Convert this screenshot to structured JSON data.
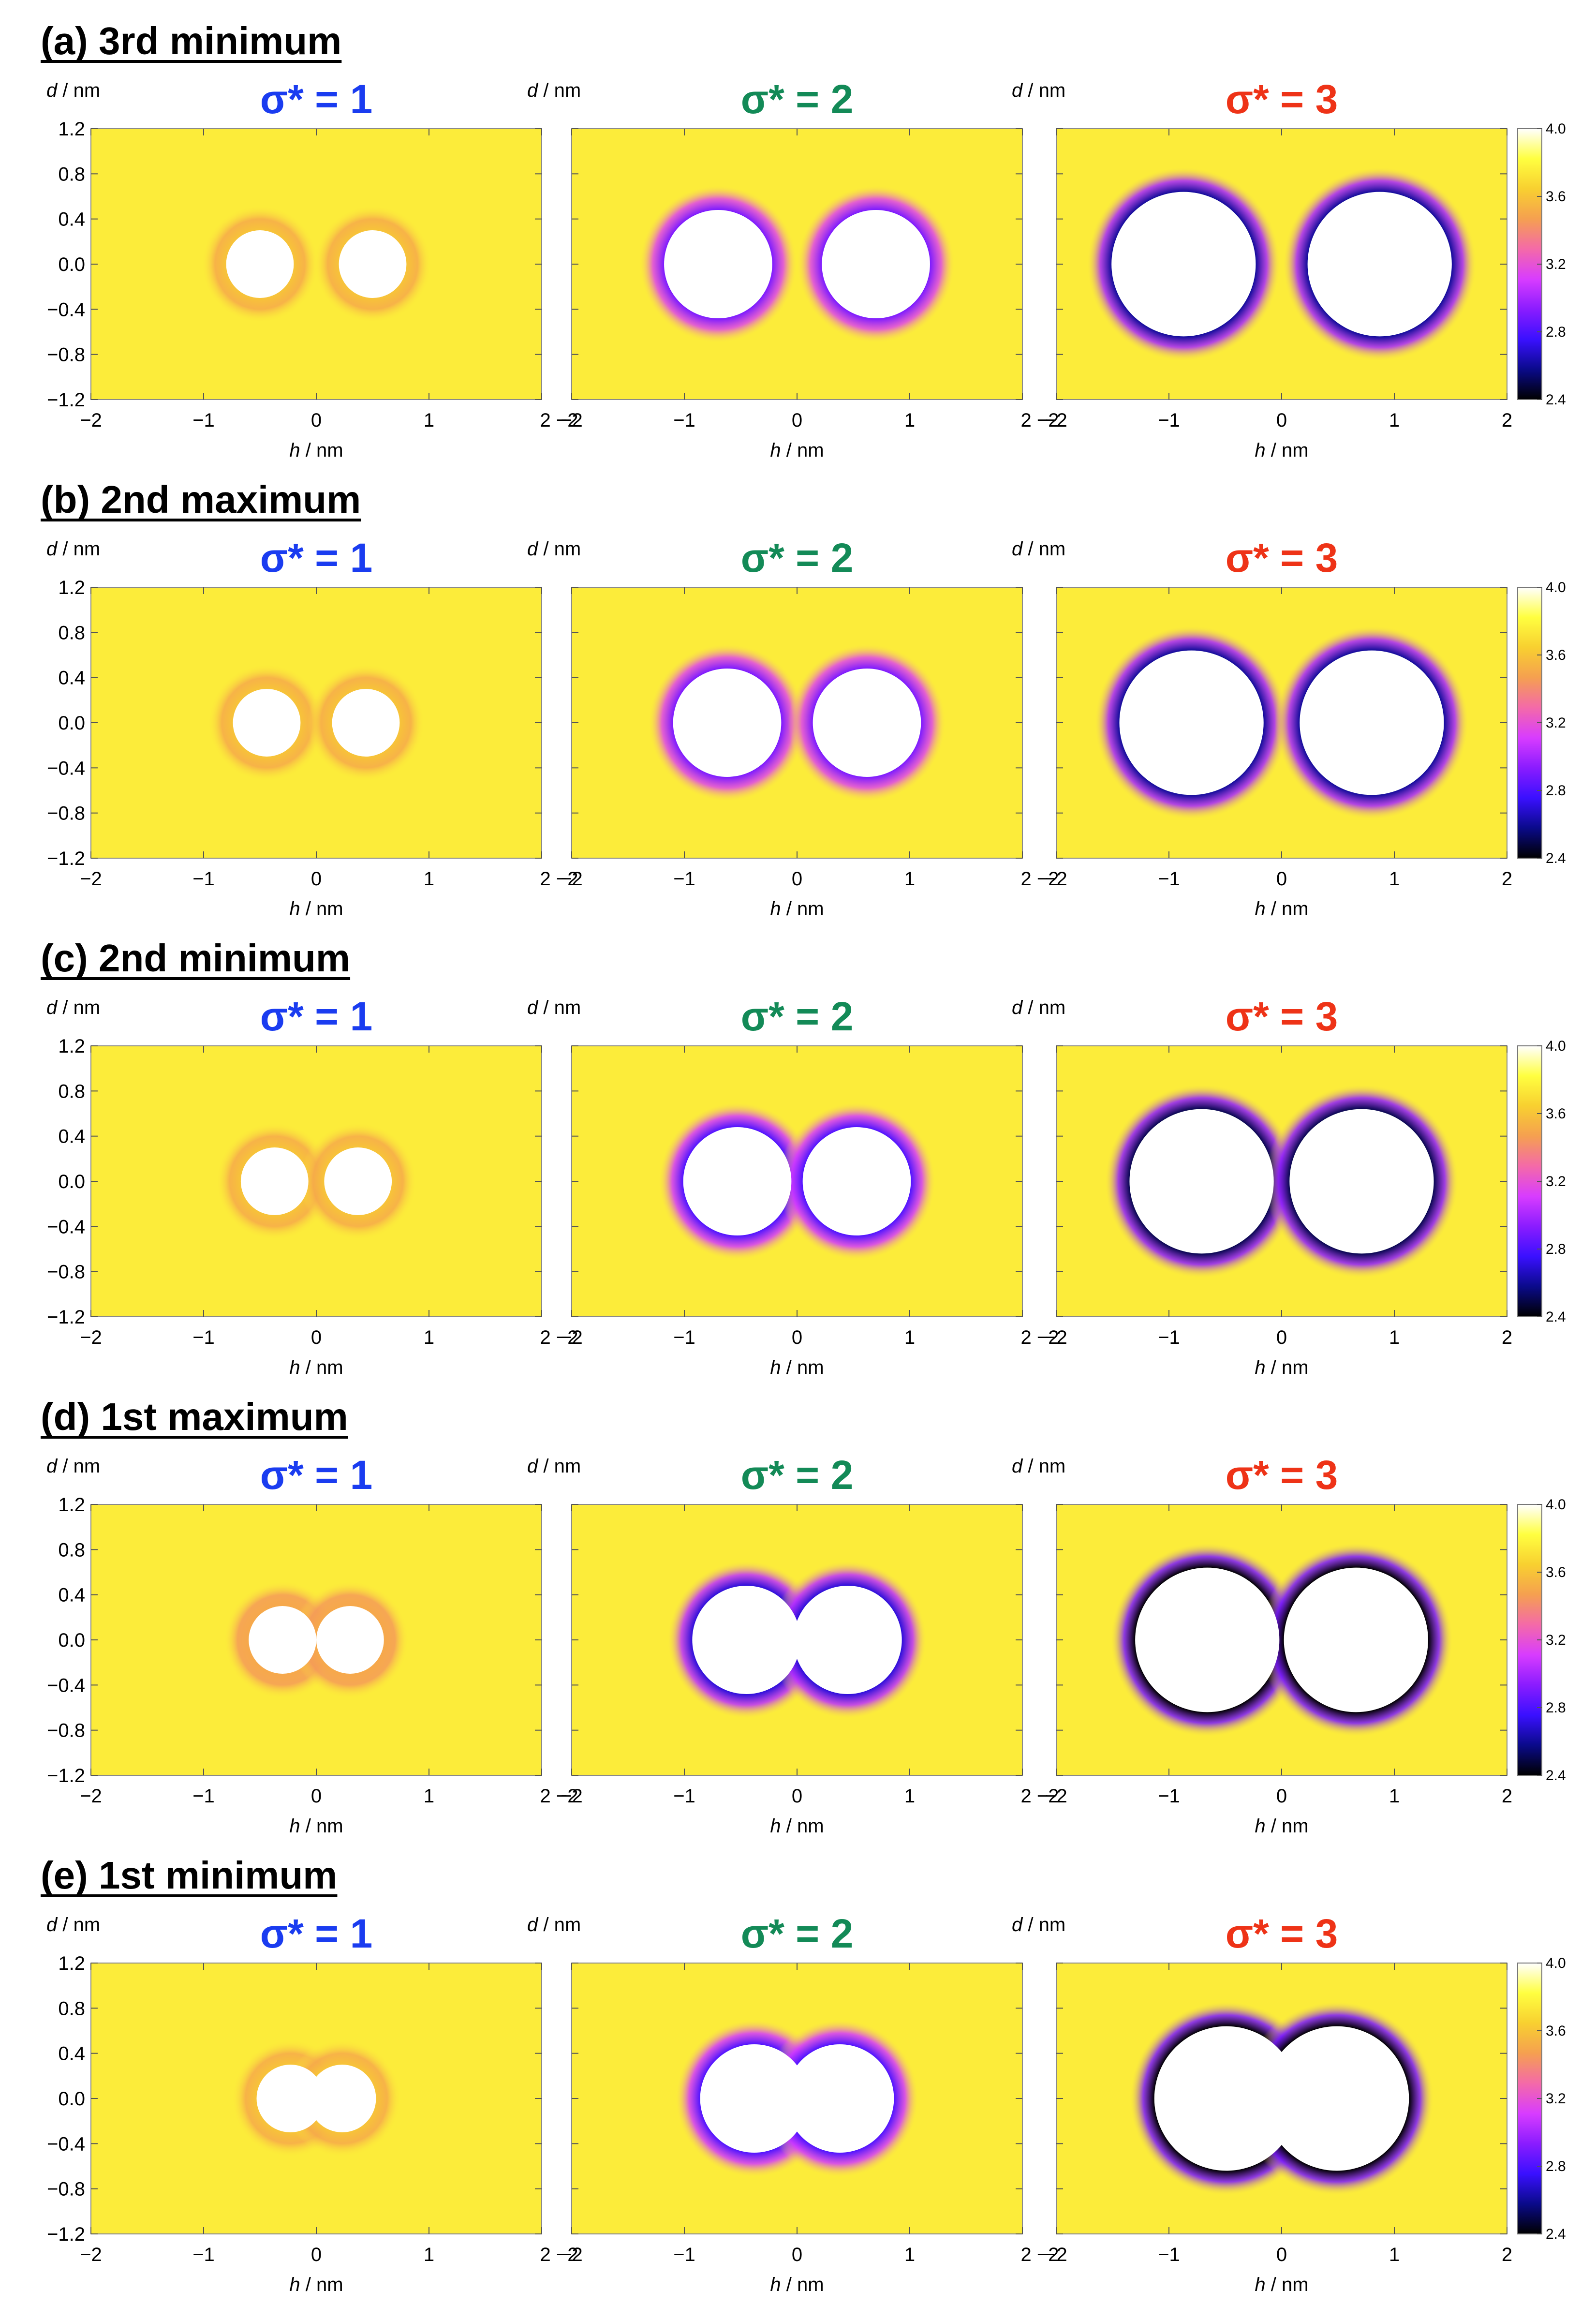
{
  "figure": {
    "colorbar": {
      "min": 2.4,
      "max": 4.0,
      "ticks": [
        "2.4",
        "2.8",
        "3.2",
        "3.6",
        "4.0"
      ],
      "colormap": [
        "#000000",
        "#0a0a8a",
        "#3a10ff",
        "#8a1cff",
        "#d83cff",
        "#f46aa8",
        "#f5a050",
        "#f8d030",
        "#ffff40",
        "#ffffff"
      ]
    },
    "colors": {
      "sigma1": "#1a3cf0",
      "sigma2": "#138a57",
      "sigma3": "#ee3317",
      "background": "#f7b24a"
    },
    "xlabel_var": "h",
    "xlabel_unit": " / nm",
    "ylabel_var": "d",
    "ylabel_unit": " / nm",
    "xticks": [
      "−2",
      "−1",
      "0",
      "1",
      "2"
    ],
    "yticks": [
      "1.2",
      "0.8",
      "0.4",
      "0.0",
      "−0.4",
      "−0.8",
      "−1.2"
    ],
    "rows": [
      {
        "title": "(a) 3rd minimum",
        "panels": [
          {
            "title": "σ* = 1",
            "color": "#1a3cf0"
          },
          {
            "title": "σ* = 2",
            "color": "#138a57"
          },
          {
            "title": "σ* = 3",
            "color": "#ee3317"
          }
        ]
      },
      {
        "title": "(b) 2nd maximum",
        "panels": [
          {
            "title": "σ* = 1",
            "color": "#1a3cf0"
          },
          {
            "title": "σ* = 2",
            "color": "#138a57"
          },
          {
            "title": "σ* = 3",
            "color": "#ee3317"
          }
        ]
      },
      {
        "title": "(c) 2nd minimum",
        "panels": [
          {
            "title": "σ* = 1",
            "color": "#1a3cf0"
          },
          {
            "title": "σ* = 2",
            "color": "#138a57"
          },
          {
            "title": "σ* = 3",
            "color": "#ee3317"
          }
        ]
      },
      {
        "title": "(d) 1st maximum",
        "panels": [
          {
            "title": "σ* = 1",
            "color": "#1a3cf0"
          },
          {
            "title": "σ* = 2",
            "color": "#138a57"
          },
          {
            "title": "σ* = 3",
            "color": "#ee3317"
          }
        ]
      },
      {
        "title": "(e) 1st minimum",
        "panels": [
          {
            "title": "σ* = 1",
            "color": "#1a3cf0"
          },
          {
            "title": "σ* = 2",
            "color": "#138a57"
          },
          {
            "title": "σ* = 3",
            "color": "#ee3317"
          }
        ]
      }
    ]
  },
  "chart_data": {
    "type": "heatmap",
    "x_variable": "h / nm",
    "y_variable": "d / nm",
    "xlim": [
      -2,
      2
    ],
    "ylim": [
      -1.2,
      1.2
    ],
    "colorbar_range": [
      2.4,
      4.0
    ],
    "panels": [
      {
        "row": "(a) 3rd minimum",
        "sigma": 1,
        "sphere_centers_h": [
          -0.5,
          0.5
        ],
        "sphere_radius": 0.3,
        "background_value": 3.75,
        "rim_min_value": 3.6
      },
      {
        "row": "(a) 3rd minimum",
        "sigma": 2,
        "sphere_centers_h": [
          -0.7,
          0.7
        ],
        "sphere_radius": 0.48,
        "background_value": 3.75,
        "rim_min_value": 2.9
      },
      {
        "row": "(a) 3rd minimum",
        "sigma": 3,
        "sphere_centers_h": [
          -0.87,
          0.87
        ],
        "sphere_radius": 0.64,
        "background_value": 3.75,
        "rim_min_value": 2.6
      },
      {
        "row": "(b) 2nd maximum",
        "sigma": 1,
        "sphere_centers_h": [
          -0.44,
          0.44
        ],
        "sphere_radius": 0.3,
        "background_value": 3.75,
        "rim_min_value": 3.6
      },
      {
        "row": "(b) 2nd maximum",
        "sigma": 2,
        "sphere_centers_h": [
          -0.62,
          0.62
        ],
        "sphere_radius": 0.48,
        "background_value": 3.75,
        "rim_min_value": 2.9
      },
      {
        "row": "(b) 2nd maximum",
        "sigma": 3,
        "sphere_centers_h": [
          -0.8,
          0.8
        ],
        "sphere_radius": 0.64,
        "background_value": 3.75,
        "rim_min_value": 2.6
      },
      {
        "row": "(c) 2nd minimum",
        "sigma": 1,
        "sphere_centers_h": [
          -0.37,
          0.37
        ],
        "sphere_radius": 0.3,
        "background_value": 3.75,
        "rim_min_value": 3.6
      },
      {
        "row": "(c) 2nd minimum",
        "sigma": 2,
        "sphere_centers_h": [
          -0.53,
          0.53
        ],
        "sphere_radius": 0.48,
        "background_value": 3.75,
        "rim_min_value": 2.8
      },
      {
        "row": "(c) 2nd minimum",
        "sigma": 3,
        "sphere_centers_h": [
          -0.71,
          0.71
        ],
        "sphere_radius": 0.64,
        "background_value": 3.75,
        "rim_min_value": 2.5
      },
      {
        "row": "(d) 1st maximum",
        "sigma": 1,
        "sphere_centers_h": [
          -0.3,
          0.3
        ],
        "sphere_radius": 0.3,
        "background_value": 3.75,
        "rim_min_value": 3.5
      },
      {
        "row": "(d) 1st maximum",
        "sigma": 2,
        "sphere_centers_h": [
          -0.45,
          0.45
        ],
        "sphere_radius": 0.48,
        "background_value": 3.75,
        "rim_min_value": 2.7
      },
      {
        "row": "(d) 1st maximum",
        "sigma": 3,
        "sphere_centers_h": [
          -0.66,
          0.66
        ],
        "sphere_radius": 0.64,
        "background_value": 3.75,
        "rim_min_value": 2.4
      },
      {
        "row": "(e) 1st minimum",
        "sigma": 1,
        "sphere_centers_h": [
          -0.23,
          0.23
        ],
        "sphere_radius": 0.3,
        "background_value": 3.75,
        "rim_min_value": 3.6
      },
      {
        "row": "(e) 1st minimum",
        "sigma": 2,
        "sphere_centers_h": [
          -0.38,
          0.38
        ],
        "sphere_radius": 0.48,
        "background_value": 3.75,
        "rim_min_value": 2.8
      },
      {
        "row": "(e) 1st minimum",
        "sigma": 3,
        "sphere_centers_h": [
          -0.49,
          0.49
        ],
        "sphere_radius": 0.64,
        "background_value": 3.75,
        "rim_min_value": 2.4
      }
    ]
  }
}
